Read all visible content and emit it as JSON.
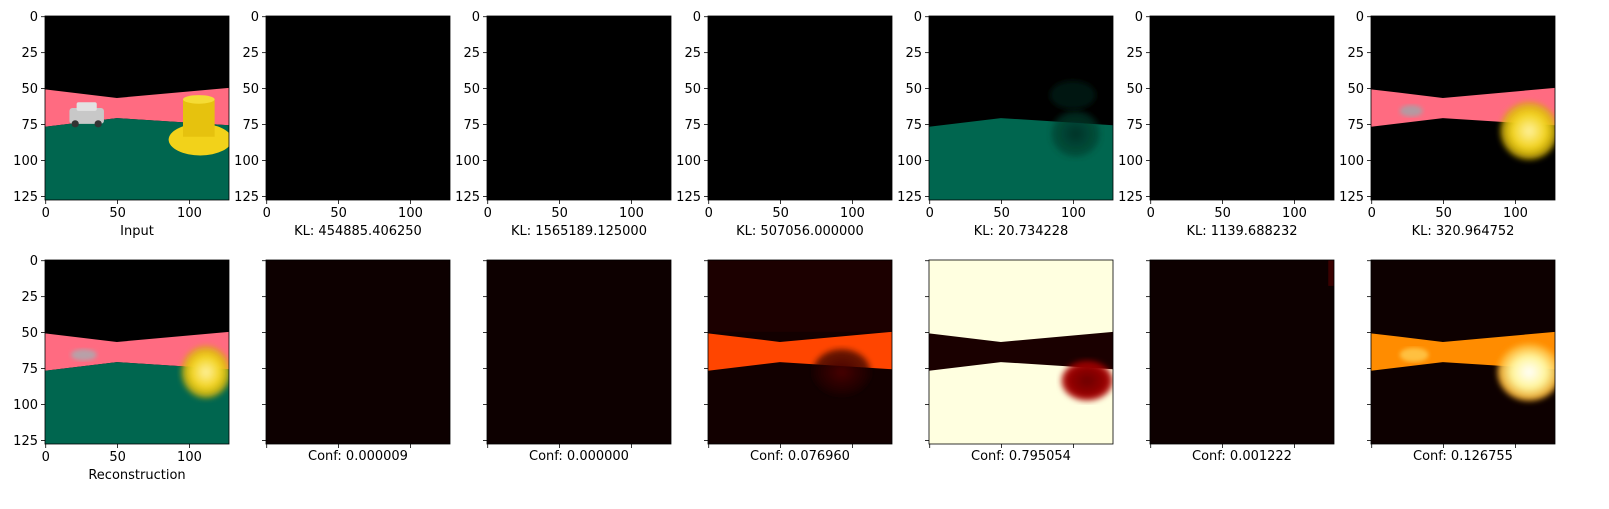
{
  "figure": {
    "top_row": [
      {
        "caption": "Input",
        "kind": "input"
      },
      {
        "caption": "KL: 454885.406250",
        "kind": "black"
      },
      {
        "caption": "KL: 1565189.125000",
        "kind": "black"
      },
      {
        "caption": "KL: 507056.000000",
        "kind": "black"
      },
      {
        "caption": "KL: 20.734228",
        "kind": "ground"
      },
      {
        "caption": "KL: 1139.688232",
        "kind": "black"
      },
      {
        "caption": "KL: 320.964752",
        "kind": "recon_partial"
      }
    ],
    "bottom_row": [
      {
        "caption": "Reconstruction",
        "kind": "reconstruction"
      },
      {
        "caption": "Conf: 0.000009",
        "kind": "conf_dark"
      },
      {
        "caption": "Conf: 0.000000",
        "kind": "conf_dark"
      },
      {
        "caption": "Conf: 0.076960",
        "kind": "conf_road"
      },
      {
        "caption": "Conf: 0.795054",
        "kind": "conf_bright"
      },
      {
        "caption": "Conf: 0.001222",
        "kind": "conf_dark2"
      },
      {
        "caption": "Conf: 0.126755",
        "kind": "conf_obj"
      }
    ],
    "axis": {
      "x_ticks": [
        0,
        50,
        100
      ],
      "y_ticks": [
        0,
        25,
        50,
        75,
        100,
        125
      ],
      "image_size": 128
    },
    "colors": {
      "sky": "#000000",
      "road": "#ff6b81",
      "ground": "#00664f",
      "object": "#f2d21a",
      "heat_dark": "#0d0000",
      "heat_mid": "#ff4500",
      "heat_bright": "#ffffe0"
    }
  }
}
